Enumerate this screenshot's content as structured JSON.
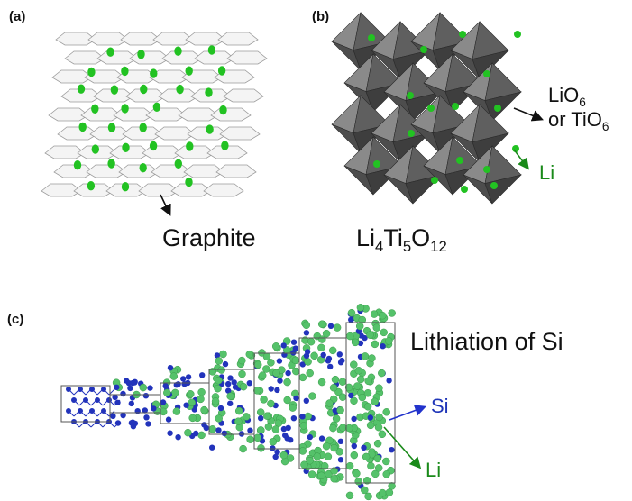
{
  "panels": {
    "a": {
      "label": "(a)",
      "caption": "Graphite"
    },
    "b": {
      "label": "(b)",
      "caption": {
        "main": "Li",
        "s1": "4",
        "m2": "Ti",
        "s2": "5",
        "m3": "O",
        "s3": "12"
      },
      "octa_line1": {
        "main": "LiO",
        "sub": "6"
      },
      "octa_line2": {
        "main": "or TiO",
        "sub": "6"
      },
      "li_label": "Li"
    },
    "c": {
      "label": "(c)",
      "title": "Lithiation of Si",
      "si_label": "Si",
      "li_label": "Li"
    }
  },
  "colors": {
    "graphite_sheet": "#f4f4f4",
    "sheet_stroke": "#9a9a9a",
    "li_green": "#22c222",
    "octahedron": "#6e6e6e",
    "si_blue": "#2233bb",
    "li_atom": "#55c26a",
    "si_arrow": "#2233cc",
    "li_arrow": "#1a8a1a"
  }
}
